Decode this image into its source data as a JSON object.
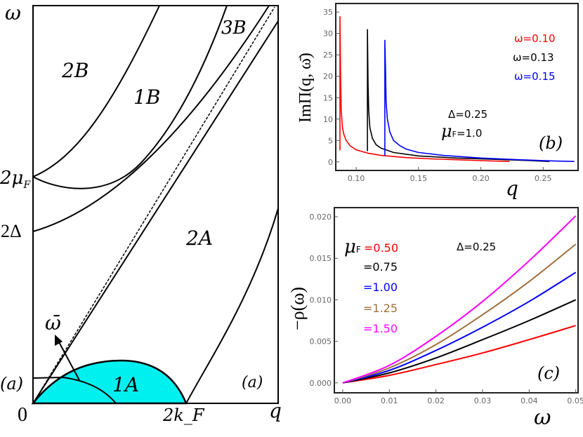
{
  "panel_a": {
    "type": "diagram",
    "y_axis_label": "ω",
    "x_axis_label": "q",
    "origin_label": "0",
    "x_tick_label": "2k_F",
    "x_tick_main": "2k",
    "x_tick_sub": "F",
    "y_tick_mu_main": "2μ",
    "y_tick_mu_sub": "F",
    "y_tick_delta": "2Δ",
    "regions": {
      "r2B": "2B",
      "r1B": "1B",
      "r3B": "3B",
      "r2A": "2A",
      "r1A": "1A"
    },
    "arrow_label": "ω̄",
    "panel_label_left": "(a)",
    "panel_label_right": "(a)",
    "fill_color": "#00f0f0"
  },
  "chart_data": [
    {
      "type": "line",
      "panel_label": "(b)",
      "xlabel": "q",
      "ylabel": "ImΠ(q, ω̄)",
      "xlim": [
        0.0836,
        0.278
      ],
      "ylim": [
        -2,
        37
      ],
      "xticks": [
        "0.10",
        "0.15",
        "0.20",
        "0.25"
      ],
      "yticks": [
        "0",
        "5",
        "10",
        "15",
        "20",
        "25",
        "30",
        "35"
      ],
      "annotations": {
        "delta": "Δ=0.25",
        "mu_main": "μ",
        "mu_sub": "F",
        "mu_value": "=1.0"
      },
      "series": [
        {
          "name": "ω=0.10",
          "color": "#ff0000",
          "points": [
            [
              0.087,
              2.7
            ],
            [
              0.087,
              34
            ],
            [
              0.0875,
              20
            ],
            [
              0.088,
              12
            ],
            [
              0.089,
              8
            ],
            [
              0.09,
              6.5
            ],
            [
              0.092,
              5
            ],
            [
              0.095,
              3.8
            ],
            [
              0.1,
              2.8
            ],
            [
              0.11,
              2
            ],
            [
              0.12,
              1.5
            ],
            [
              0.14,
              1.0
            ],
            [
              0.16,
              0.7
            ],
            [
              0.18,
              0.5
            ],
            [
              0.2,
              0.3
            ],
            [
              0.223,
              0.1
            ]
          ]
        },
        {
          "name": "ω=0.13",
          "color": "#000000",
          "points": [
            [
              0.109,
              2.5
            ],
            [
              0.109,
              31
            ],
            [
              0.1095,
              18
            ],
            [
              0.11,
              12
            ],
            [
              0.111,
              8
            ],
            [
              0.113,
              5.5
            ],
            [
              0.116,
              4
            ],
            [
              0.12,
              3.2
            ],
            [
              0.13,
              2.2
            ],
            [
              0.15,
              1.4
            ],
            [
              0.18,
              0.9
            ],
            [
              0.21,
              0.6
            ],
            [
              0.24,
              0.3
            ],
            [
              0.255,
              0.1
            ]
          ]
        },
        {
          "name": "ω=0.15",
          "color": "#0000ff",
          "points": [
            [
              0.123,
              1.4
            ],
            [
              0.123,
              28.5
            ],
            [
              0.1235,
              22
            ],
            [
              0.124,
              14
            ],
            [
              0.125,
              10
            ],
            [
              0.127,
              7
            ],
            [
              0.13,
              5
            ],
            [
              0.135,
              3.8
            ],
            [
              0.14,
              3
            ],
            [
              0.15,
              2.2
            ],
            [
              0.17,
              1.5
            ],
            [
              0.2,
              0.9
            ],
            [
              0.23,
              0.5
            ],
            [
              0.26,
              0.2
            ],
            [
              0.275,
              0.1
            ]
          ]
        }
      ]
    },
    {
      "type": "line",
      "panel_label": "(c)",
      "xlabel": "ω",
      "ylabel": "−ρ(ω)",
      "xlim": [
        -0.0018,
        0.0505
      ],
      "ylim": [
        -0.0012,
        0.0211
      ],
      "xticks": [
        "0.00",
        "0.01",
        "0.02",
        "0.03",
        "0.04",
        "0.05"
      ],
      "yticks": [
        "0.000",
        "0.005",
        "0.010",
        "0.015",
        "0.020"
      ],
      "annotations": {
        "delta": "Δ=0.25",
        "mu_main": "μ",
        "mu_sub": "F"
      },
      "x": [
        0,
        0.01,
        0.02,
        0.03,
        0.04,
        0.05
      ],
      "series": [
        {
          "name": "=0.50",
          "color": "#ff0000",
          "values": [
            0,
            0.0009,
            0.0022,
            0.0036,
            0.0052,
            0.0069
          ]
        },
        {
          "name": "=0.75",
          "color": "#000000",
          "values": [
            0,
            0.0012,
            0.003,
            0.0052,
            0.0075,
            0.01
          ]
        },
        {
          "name": "=1.00",
          "color": "#0000ff",
          "values": [
            0,
            0.0015,
            0.0039,
            0.0067,
            0.0098,
            0.0133
          ]
        },
        {
          "name": "=1.25",
          "color": "#a0703c",
          "values": [
            0,
            0.0018,
            0.0046,
            0.0082,
            0.0122,
            0.0167
          ]
        },
        {
          "name": "=1.50",
          "color": "#ff00ff",
          "values": [
            0,
            0.0021,
            0.0056,
            0.0098,
            0.0147,
            0.0201
          ]
        }
      ]
    }
  ]
}
